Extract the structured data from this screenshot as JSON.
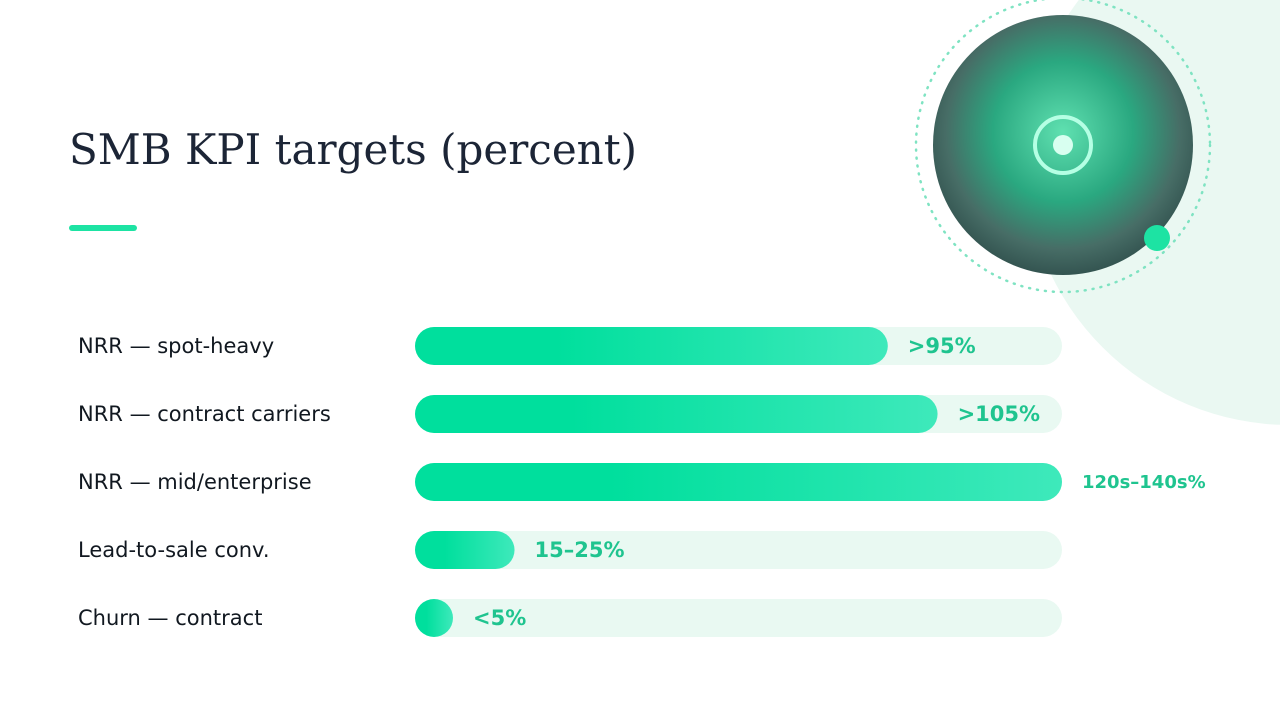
{
  "chart_data": {
    "type": "hbar",
    "title": "SMB KPI targets (percent)",
    "categories": [
      "NRR — spot-heavy",
      "NRR — contract carriers",
      "NRR — mid/enterprise",
      "Lead-to-sale conv.",
      "Churn — contract"
    ],
    "values": [
      95,
      105,
      130,
      20,
      5
    ],
    "value_labels": [
      ">95%",
      ">105%",
      "120s–140s%",
      "15–25%",
      "<5%"
    ],
    "color": "#00dd9c",
    "xlim": [
      0,
      130
    ]
  }
}
